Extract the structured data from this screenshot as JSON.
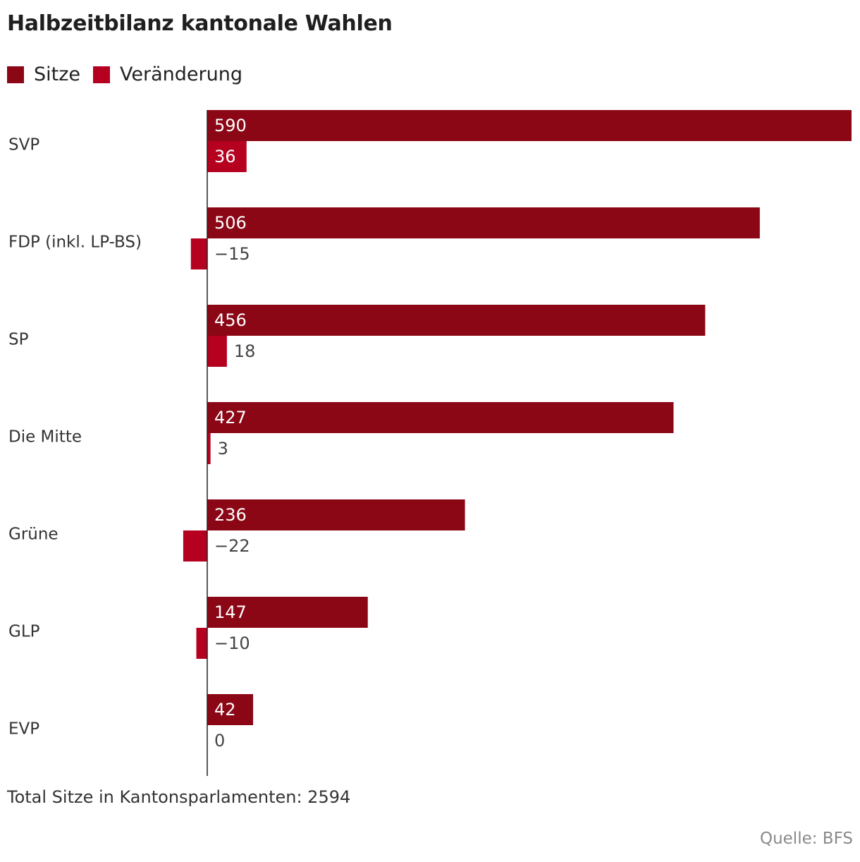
{
  "chart_data": {
    "type": "bar",
    "orientation": "horizontal",
    "title": "Halbzeitbilanz kantonale Wahlen",
    "categories": [
      "SVP",
      "FDP (inkl. LP-BS)",
      "SP",
      "Die Mitte",
      "Grüne",
      "GLP",
      "EVP"
    ],
    "series": [
      {
        "name": "Sitze",
        "color": "#8b0716",
        "values": [
          590,
          506,
          456,
          427,
          236,
          147,
          42
        ],
        "labels": [
          "590",
          "506",
          "456",
          "427",
          "236",
          "147",
          "42"
        ]
      },
      {
        "name": "Veränderung",
        "color": "#b5001f",
        "values": [
          36,
          -15,
          18,
          3,
          -22,
          -10,
          0
        ],
        "labels": [
          "36",
          "−15",
          "18",
          "3",
          "−22",
          "−10",
          "0"
        ]
      }
    ],
    "xlim": [
      -25,
      590
    ],
    "legend_position": "top-left",
    "note": "Total Sitze in Kantonsparlamenten: 2594",
    "source": "Quelle: BFS"
  }
}
